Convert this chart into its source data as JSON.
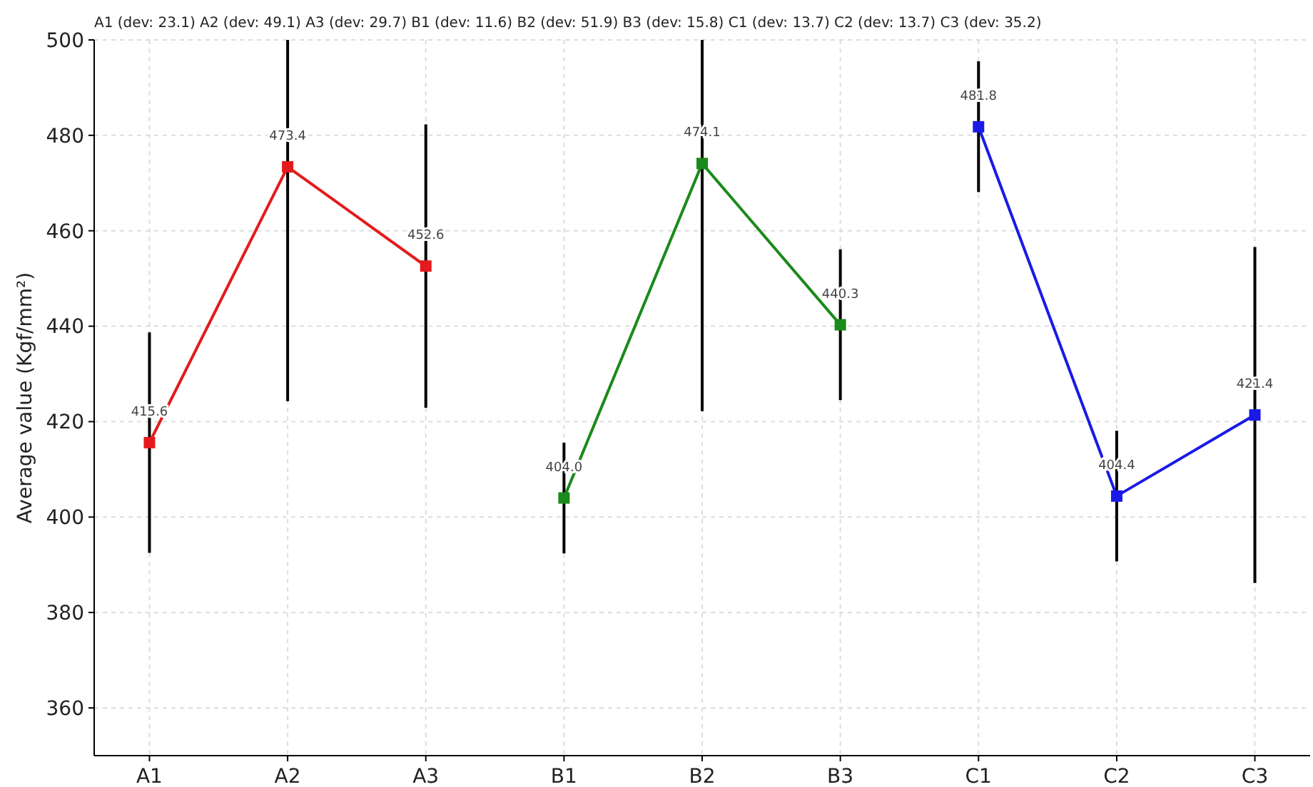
{
  "chart_data": {
    "type": "line",
    "title": "A1 (dev: 23.1) A2 (dev: 49.1) A3 (dev: 29.7) B1 (dev: 11.6) B2 (dev: 51.9) B3 (dev: 15.8) C1 (dev: 13.7) C2 (dev: 13.7) C3 (dev: 35.2)",
    "ylabel": "Average value (Kgf/mm²)",
    "categories": [
      "A1",
      "A2",
      "A3",
      "B1",
      "B2",
      "B3",
      "C1",
      "C2",
      "C3"
    ],
    "series": [
      {
        "color": "#e41a1c",
        "values": [
          415.6,
          473.4,
          452.6,
          null,
          null,
          null,
          null,
          null,
          null
        ],
        "errors": [
          23.1,
          49.1,
          29.7,
          null,
          null,
          null,
          null,
          null,
          null
        ],
        "value_labels": [
          "415.6",
          "473.4",
          "452.6",
          null,
          null,
          null,
          null,
          null,
          null
        ]
      },
      {
        "color": "#1a8a1a",
        "values": [
          null,
          null,
          null,
          404.0,
          474.1,
          440.3,
          null,
          null,
          null
        ],
        "errors": [
          null,
          null,
          null,
          11.6,
          51.9,
          15.8,
          null,
          null,
          null
        ],
        "value_labels": [
          null,
          null,
          null,
          "404.0",
          "474.1",
          "440.3",
          null,
          null,
          null
        ]
      },
      {
        "color": "#1a1ae6",
        "values": [
          null,
          null,
          null,
          null,
          null,
          null,
          481.8,
          404.4,
          421.4
        ],
        "errors": [
          null,
          null,
          null,
          null,
          null,
          null,
          13.7,
          13.7,
          35.2
        ],
        "value_labels": [
          null,
          null,
          null,
          null,
          null,
          null,
          "481.8",
          "404.4",
          "421.4"
        ]
      }
    ],
    "ylim": [
      350,
      500
    ],
    "yticks": [
      360,
      380,
      400,
      420,
      440,
      460,
      480,
      500
    ],
    "grid": true,
    "marker": "square",
    "line_style": "solid"
  }
}
